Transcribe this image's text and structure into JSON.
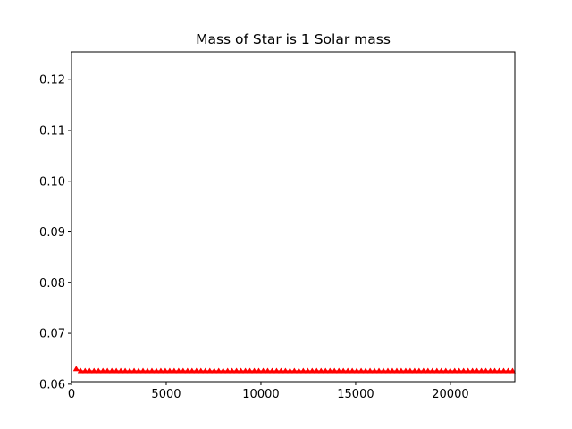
{
  "chart_data": {
    "type": "line",
    "title": "Mass of Star is 1 Solar mass",
    "xlabel": "",
    "ylabel": "",
    "xlim": [
      0,
      23400
    ],
    "ylim": [
      0.0605,
      0.1255
    ],
    "xticks": [
      0,
      5000,
      10000,
      15000,
      20000
    ],
    "yticks": [
      0.06,
      0.07,
      0.08,
      0.09,
      0.1,
      0.11,
      0.12
    ],
    "ytick_labels": [
      "0.06",
      "0.07",
      "0.08",
      "0.09",
      "0.10",
      "0.11",
      "0.12"
    ],
    "grid": false,
    "legend": "none",
    "series": [
      {
        "color": "#ff0000",
        "marker": "triangle-up",
        "x_start": 250,
        "x_step": 235,
        "x_end": 23400,
        "first_value": 0.063,
        "value": 0.0626
      }
    ]
  }
}
